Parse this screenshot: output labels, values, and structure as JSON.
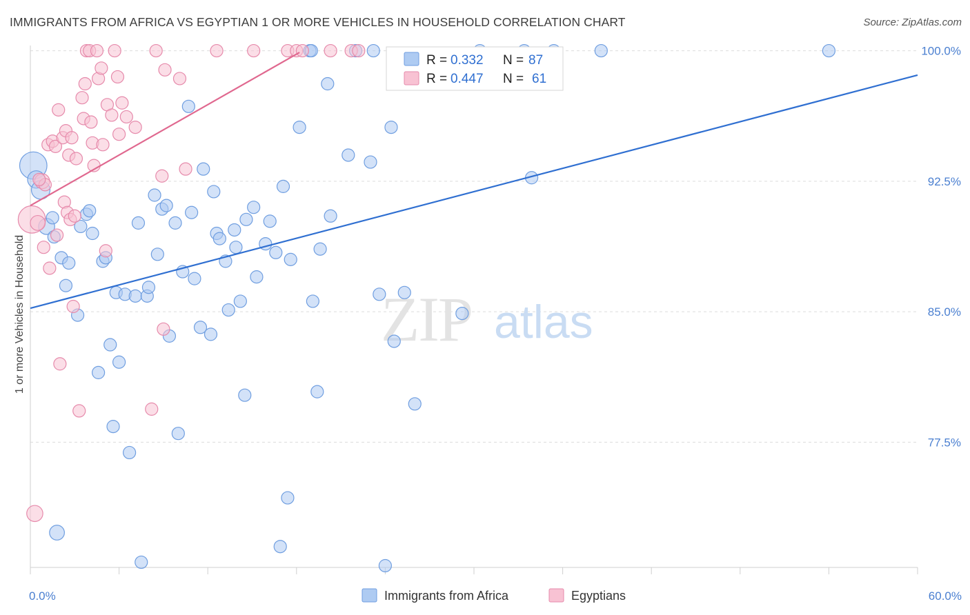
{
  "header": {
    "title": "IMMIGRANTS FROM AFRICA VS EGYPTIAN 1 OR MORE VEHICLES IN HOUSEHOLD CORRELATION CHART",
    "source": "Source: ZipAtlas.com"
  },
  "watermark": {
    "zip": "ZIP",
    "atlas": "atlas"
  },
  "legend": {
    "items": [
      {
        "label": "Immigrants from Africa",
        "fill": "#aecbf2",
        "stroke": "#6f9ee0"
      },
      {
        "label": "Egyptians",
        "fill": "#f8c2d3",
        "stroke": "#e68aab"
      }
    ]
  },
  "stats": {
    "r_label": "R =",
    "n_label": "N =",
    "rows": [
      {
        "r": "0.332",
        "n": "87"
      },
      {
        "r": "0.447",
        "n": "61"
      }
    ]
  },
  "chart_data": {
    "type": "scatter",
    "title": "IMMIGRANTS FROM AFRICA VS EGYPTIAN 1 OR MORE VEHICLES IN HOUSEHOLD CORRELATION CHART",
    "xlabel": "",
    "ylabel": "1 or more Vehicles in Household",
    "xlim": [
      0,
      60
    ],
    "ylim": [
      70.3,
      100.3
    ],
    "x_tick_labels": [
      {
        "value": 0,
        "label": "0.0%"
      },
      {
        "value": 60,
        "label": "60.0%"
      }
    ],
    "y_ticks": [
      {
        "value": 100.0,
        "label": "100.0%"
      },
      {
        "value": 92.5,
        "label": "92.5%"
      },
      {
        "value": 85.0,
        "label": "85.0%"
      },
      {
        "value": 77.5,
        "label": "77.5%"
      }
    ],
    "x_minor_ticks": [
      0,
      6,
      12,
      18,
      24,
      30,
      36,
      42,
      48,
      54,
      60
    ],
    "grid": true,
    "legend_position": "bottom-center",
    "colors": {
      "blue": "#2f6fd1",
      "pink": "#e0688f",
      "tick_text": "#4a7fd0",
      "grid": "#dcdcdc"
    },
    "series": [
      {
        "name": "Immigrants from Africa",
        "color": "#6f9ee0",
        "fill": "#aecbf2",
        "trend": {
          "x": [
            0,
            60
          ],
          "y": [
            85.2,
            98.6
          ]
        },
        "points": [
          {
            "x": 0.2,
            "y": 93.4,
            "s": 2.2
          },
          {
            "x": 0.4,
            "y": 92.6,
            "s": 1.4
          },
          {
            "x": 0.7,
            "y": 92.0,
            "s": 1.5
          },
          {
            "x": 1.1,
            "y": 89.9,
            "s": 1.3
          },
          {
            "x": 1.5,
            "y": 90.4,
            "s": 1
          },
          {
            "x": 1.6,
            "y": 89.3,
            "s": 1
          },
          {
            "x": 2.1,
            "y": 88.1,
            "s": 1
          },
          {
            "x": 2.4,
            "y": 86.5,
            "s": 1
          },
          {
            "x": 2.6,
            "y": 87.8,
            "s": 1
          },
          {
            "x": 3.2,
            "y": 84.8,
            "s": 1
          },
          {
            "x": 3.4,
            "y": 89.9,
            "s": 1
          },
          {
            "x": 3.8,
            "y": 90.6,
            "s": 1
          },
          {
            "x": 4.0,
            "y": 90.8,
            "s": 1
          },
          {
            "x": 4.2,
            "y": 89.5,
            "s": 1
          },
          {
            "x": 4.6,
            "y": 81.5,
            "s": 1
          },
          {
            "x": 4.9,
            "y": 87.9,
            "s": 1
          },
          {
            "x": 5.1,
            "y": 88.1,
            "s": 1
          },
          {
            "x": 5.4,
            "y": 83.1,
            "s": 1
          },
          {
            "x": 5.6,
            "y": 78.4,
            "s": 1
          },
          {
            "x": 5.8,
            "y": 86.1,
            "s": 1
          },
          {
            "x": 6.0,
            "y": 82.1,
            "s": 1
          },
          {
            "x": 6.4,
            "y": 86.0,
            "s": 1
          },
          {
            "x": 6.7,
            "y": 76.9,
            "s": 1
          },
          {
            "x": 7.1,
            "y": 85.9,
            "s": 1
          },
          {
            "x": 7.3,
            "y": 90.1,
            "s": 1
          },
          {
            "x": 7.5,
            "y": 70.6,
            "s": 1
          },
          {
            "x": 7.9,
            "y": 85.9,
            "s": 1
          },
          {
            "x": 8.0,
            "y": 86.4,
            "s": 1
          },
          {
            "x": 8.4,
            "y": 91.7,
            "s": 1
          },
          {
            "x": 8.6,
            "y": 88.3,
            "s": 1
          },
          {
            "x": 8.9,
            "y": 90.9,
            "s": 1
          },
          {
            "x": 9.2,
            "y": 91.1,
            "s": 1
          },
          {
            "x": 9.4,
            "y": 83.6,
            "s": 1
          },
          {
            "x": 9.8,
            "y": 90.1,
            "s": 1
          },
          {
            "x": 10.0,
            "y": 78.0,
            "s": 1
          },
          {
            "x": 10.3,
            "y": 87.3,
            "s": 1
          },
          {
            "x": 10.7,
            "y": 96.8,
            "s": 1
          },
          {
            "x": 10.9,
            "y": 90.7,
            "s": 1
          },
          {
            "x": 11.1,
            "y": 86.9,
            "s": 1
          },
          {
            "x": 11.5,
            "y": 84.1,
            "s": 1
          },
          {
            "x": 11.7,
            "y": 93.2,
            "s": 1
          },
          {
            "x": 12.2,
            "y": 83.7,
            "s": 1
          },
          {
            "x": 12.4,
            "y": 91.9,
            "s": 1
          },
          {
            "x": 12.6,
            "y": 89.5,
            "s": 1
          },
          {
            "x": 12.8,
            "y": 89.2,
            "s": 1
          },
          {
            "x": 13.2,
            "y": 87.9,
            "s": 1
          },
          {
            "x": 13.4,
            "y": 85.1,
            "s": 1
          },
          {
            "x": 13.8,
            "y": 89.7,
            "s": 1
          },
          {
            "x": 13.9,
            "y": 88.7,
            "s": 1
          },
          {
            "x": 14.2,
            "y": 85.6,
            "s": 1
          },
          {
            "x": 14.5,
            "y": 80.2,
            "s": 1
          },
          {
            "x": 14.6,
            "y": 90.3,
            "s": 1
          },
          {
            "x": 15.1,
            "y": 91.0,
            "s": 1
          },
          {
            "x": 15.3,
            "y": 87.0,
            "s": 1
          },
          {
            "x": 15.9,
            "y": 88.9,
            "s": 1
          },
          {
            "x": 16.2,
            "y": 90.2,
            "s": 1
          },
          {
            "x": 16.6,
            "y": 88.4,
            "s": 1
          },
          {
            "x": 16.9,
            "y": 71.5,
            "s": 1
          },
          {
            "x": 17.1,
            "y": 92.2,
            "s": 1
          },
          {
            "x": 17.4,
            "y": 74.3,
            "s": 1
          },
          {
            "x": 17.6,
            "y": 88.0,
            "s": 1
          },
          {
            "x": 18.2,
            "y": 95.6,
            "s": 1
          },
          {
            "x": 18.9,
            "y": 100.0,
            "s": 1
          },
          {
            "x": 19.0,
            "y": 100.0,
            "s": 1
          },
          {
            "x": 19.1,
            "y": 85.6,
            "s": 1
          },
          {
            "x": 19.4,
            "y": 80.4,
            "s": 1
          },
          {
            "x": 19.6,
            "y": 88.6,
            "s": 1
          },
          {
            "x": 20.1,
            "y": 98.1,
            "s": 1
          },
          {
            "x": 20.3,
            "y": 90.5,
            "s": 1
          },
          {
            "x": 21.5,
            "y": 94.0,
            "s": 1
          },
          {
            "x": 22.0,
            "y": 100.0,
            "s": 1
          },
          {
            "x": 23.0,
            "y": 93.6,
            "s": 1
          },
          {
            "x": 23.2,
            "y": 100.0,
            "s": 1
          },
          {
            "x": 23.6,
            "y": 86.0,
            "s": 1
          },
          {
            "x": 24.0,
            "y": 70.4,
            "s": 1
          },
          {
            "x": 24.4,
            "y": 95.6,
            "s": 1
          },
          {
            "x": 24.6,
            "y": 83.3,
            "s": 1
          },
          {
            "x": 25.3,
            "y": 86.1,
            "s": 1
          },
          {
            "x": 26.0,
            "y": 79.7,
            "s": 1
          },
          {
            "x": 29.2,
            "y": 84.9,
            "s": 1
          },
          {
            "x": 30.4,
            "y": 100.0,
            "s": 1
          },
          {
            "x": 33.4,
            "y": 100.0,
            "s": 1
          },
          {
            "x": 33.9,
            "y": 92.7,
            "s": 1
          },
          {
            "x": 35.4,
            "y": 100.0,
            "s": 1
          },
          {
            "x": 38.6,
            "y": 100.0,
            "s": 1
          },
          {
            "x": 54.0,
            "y": 100.0,
            "s": 1
          },
          {
            "x": 1.8,
            "y": 72.3,
            "s": 1.2
          }
        ]
      },
      {
        "name": "Egyptians",
        "color": "#e68aab",
        "fill": "#f8c2d3",
        "trend": {
          "x": [
            0,
            18.2
          ],
          "y": [
            91.1,
            99.9
          ]
        },
        "points": [
          {
            "x": 0.1,
            "y": 90.3,
            "s": 2.2
          },
          {
            "x": 0.3,
            "y": 73.4,
            "s": 1.3
          },
          {
            "x": 0.5,
            "y": 90.1,
            "s": 1.2
          },
          {
            "x": 0.8,
            "y": 92.5,
            "s": 1.2
          },
          {
            "x": 0.9,
            "y": 88.7,
            "s": 1
          },
          {
            "x": 1.0,
            "y": 92.3,
            "s": 1
          },
          {
            "x": 1.2,
            "y": 94.6,
            "s": 1
          },
          {
            "x": 1.3,
            "y": 87.5,
            "s": 1
          },
          {
            "x": 1.5,
            "y": 94.8,
            "s": 1
          },
          {
            "x": 1.7,
            "y": 94.5,
            "s": 1
          },
          {
            "x": 1.8,
            "y": 89.4,
            "s": 1
          },
          {
            "x": 1.9,
            "y": 96.6,
            "s": 1
          },
          {
            "x": 2.0,
            "y": 82.0,
            "s": 1
          },
          {
            "x": 2.2,
            "y": 95.0,
            "s": 1
          },
          {
            "x": 2.3,
            "y": 91.3,
            "s": 1
          },
          {
            "x": 2.4,
            "y": 95.4,
            "s": 1
          },
          {
            "x": 2.5,
            "y": 90.7,
            "s": 1
          },
          {
            "x": 2.6,
            "y": 94.0,
            "s": 1
          },
          {
            "x": 2.7,
            "y": 90.3,
            "s": 1
          },
          {
            "x": 2.8,
            "y": 95.0,
            "s": 1
          },
          {
            "x": 2.9,
            "y": 85.3,
            "s": 1
          },
          {
            "x": 3.0,
            "y": 90.5,
            "s": 1
          },
          {
            "x": 3.1,
            "y": 93.8,
            "s": 1
          },
          {
            "x": 3.3,
            "y": 79.3,
            "s": 1
          },
          {
            "x": 3.5,
            "y": 97.3,
            "s": 1
          },
          {
            "x": 3.6,
            "y": 96.1,
            "s": 1
          },
          {
            "x": 3.7,
            "y": 98.1,
            "s": 1
          },
          {
            "x": 3.8,
            "y": 100.0,
            "s": 1
          },
          {
            "x": 4.0,
            "y": 100.0,
            "s": 1
          },
          {
            "x": 4.1,
            "y": 95.9,
            "s": 1
          },
          {
            "x": 4.2,
            "y": 94.7,
            "s": 1
          },
          {
            "x": 4.3,
            "y": 93.4,
            "s": 1
          },
          {
            "x": 4.5,
            "y": 100.0,
            "s": 1
          },
          {
            "x": 4.6,
            "y": 98.4,
            "s": 1
          },
          {
            "x": 4.8,
            "y": 99.0,
            "s": 1
          },
          {
            "x": 4.9,
            "y": 94.6,
            "s": 1
          },
          {
            "x": 5.1,
            "y": 88.5,
            "s": 1
          },
          {
            "x": 5.2,
            "y": 96.9,
            "s": 1
          },
          {
            "x": 5.5,
            "y": 96.3,
            "s": 1
          },
          {
            "x": 5.7,
            "y": 100.0,
            "s": 1
          },
          {
            "x": 5.9,
            "y": 98.5,
            "s": 1
          },
          {
            "x": 6.0,
            "y": 95.2,
            "s": 1
          },
          {
            "x": 6.2,
            "y": 97.0,
            "s": 1
          },
          {
            "x": 6.5,
            "y": 96.2,
            "s": 1
          },
          {
            "x": 7.1,
            "y": 95.6,
            "s": 1
          },
          {
            "x": 8.2,
            "y": 79.4,
            "s": 1
          },
          {
            "x": 8.5,
            "y": 100.0,
            "s": 1
          },
          {
            "x": 8.9,
            "y": 92.8,
            "s": 1
          },
          {
            "x": 9.0,
            "y": 84.0,
            "s": 1
          },
          {
            "x": 9.1,
            "y": 98.9,
            "s": 1
          },
          {
            "x": 10.1,
            "y": 98.4,
            "s": 1
          },
          {
            "x": 10.5,
            "y": 93.2,
            "s": 1
          },
          {
            "x": 12.6,
            "y": 100.0,
            "s": 1
          },
          {
            "x": 15.1,
            "y": 100.0,
            "s": 1
          },
          {
            "x": 17.4,
            "y": 100.0,
            "s": 1
          },
          {
            "x": 18.0,
            "y": 100.0,
            "s": 1
          },
          {
            "x": 18.4,
            "y": 100.0,
            "s": 1
          },
          {
            "x": 20.3,
            "y": 100.0,
            "s": 1
          },
          {
            "x": 21.7,
            "y": 100.0,
            "s": 1
          },
          {
            "x": 22.2,
            "y": 100.0,
            "s": 1
          },
          {
            "x": 0.6,
            "y": 92.6,
            "s": 1
          }
        ]
      }
    ]
  }
}
